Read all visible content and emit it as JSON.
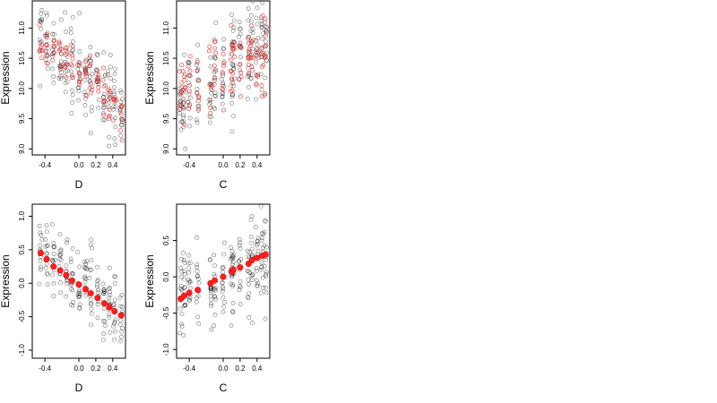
{
  "chart_data": [
    {
      "id": "top-left",
      "type": "scatter",
      "xlabel": "D",
      "ylabel": "Expression",
      "xlim": [
        -0.55,
        0.55
      ],
      "ylim": [
        8.9,
        11.45
      ],
      "xticks": [
        -0.4,
        0.0,
        0.2,
        0.4
      ],
      "xtick_labels": [
        "-0.4",
        "0.0",
        "0.2",
        "0.4"
      ],
      "yticks": [
        9.0,
        9.5,
        10.0,
        10.5,
        11.0
      ],
      "ytick_labels": [
        "9.0",
        "9.5",
        "10.0",
        "10.5",
        "11.0"
      ],
      "x_groups": [
        -0.45,
        -0.38,
        -0.3,
        -0.22,
        -0.15,
        -0.08,
        0.0,
        0.08,
        0.14,
        0.22,
        0.3,
        0.36,
        0.42,
        0.5
      ],
      "series": [
        {
          "style": "black-open",
          "trend": {
            "intercept": 10.3,
            "slope": -1.3
          },
          "spread": 0.32,
          "per_group": 14
        },
        {
          "style": "red-open",
          "trend": {
            "intercept": 10.3,
            "slope": -1.2
          },
          "spread": 0.22,
          "per_group": 7
        }
      ]
    },
    {
      "id": "top-right",
      "type": "scatter",
      "xlabel": "C",
      "ylabel": "Expression",
      "xlim": [
        -0.55,
        0.55
      ],
      "ylim": [
        8.9,
        11.45
      ],
      "xticks": [
        -0.4,
        0.0,
        0.2,
        0.4
      ],
      "xtick_labels": [
        "-0.4",
        "0.0",
        "0.2",
        "0.4"
      ],
      "yticks": [
        9.0,
        9.5,
        10.0,
        10.5,
        11.0
      ],
      "ytick_labels": [
        "9.0",
        "9.5",
        "10.0",
        "10.5",
        "11.0"
      ],
      "x_groups": [
        -0.5,
        -0.46,
        -0.4,
        -0.3,
        -0.15,
        -0.1,
        0.0,
        0.1,
        0.12,
        0.2,
        0.3,
        0.34,
        0.4,
        0.46,
        0.5
      ],
      "series": [
        {
          "style": "black-open",
          "trend": {
            "intercept": 10.3,
            "slope": 0.9
          },
          "spread": 0.38,
          "per_group": 14
        },
        {
          "style": "red-open",
          "trend": {
            "intercept": 10.3,
            "slope": 0.9
          },
          "spread": 0.3,
          "per_group": 8
        }
      ]
    },
    {
      "id": "bottom-left",
      "type": "scatter",
      "xlabel": "D",
      "ylabel": "Expression",
      "xlim": [
        -0.55,
        0.55
      ],
      "ylim": [
        -1.12,
        1.18
      ],
      "xticks": [
        -0.4,
        0.0,
        0.2,
        0.4
      ],
      "xtick_labels": [
        "-0.4",
        "0.0",
        "0.2",
        "0.4"
      ],
      "yticks": [
        -1.0,
        -0.5,
        0.0,
        0.5,
        1.0
      ],
      "ytick_labels": [
        "-1.0",
        "-0.5",
        "0.0",
        "0.5",
        "1.0"
      ],
      "x_groups": [
        -0.45,
        -0.38,
        -0.3,
        -0.22,
        -0.15,
        -0.08,
        0.0,
        0.08,
        0.14,
        0.22,
        0.3,
        0.36,
        0.42,
        0.5
      ],
      "series": [
        {
          "style": "black-open",
          "trend": {
            "intercept": 0.05,
            "slope": -1.0
          },
          "spread": 0.25,
          "per_group": 14
        },
        {
          "style": "red-solid",
          "points": [
            [
              -0.45,
              0.45
            ],
            [
              -0.38,
              0.36
            ],
            [
              -0.3,
              0.25
            ],
            [
              -0.22,
              0.19
            ],
            [
              -0.15,
              0.12
            ],
            [
              -0.08,
              0.04
            ],
            [
              0.0,
              -0.02
            ],
            [
              0.08,
              -0.09
            ],
            [
              0.14,
              -0.15
            ],
            [
              0.22,
              -0.22
            ],
            [
              0.3,
              -0.3
            ],
            [
              0.36,
              -0.36
            ],
            [
              0.42,
              -0.42
            ],
            [
              0.5,
              -0.48
            ]
          ]
        }
      ]
    },
    {
      "id": "bottom-right",
      "type": "scatter",
      "xlabel": "C",
      "ylabel": "Expression",
      "xlim": [
        -0.55,
        0.55
      ],
      "ylim": [
        -1.12,
        1.0
      ],
      "xticks": [
        -0.4,
        0.0,
        0.2,
        0.4
      ],
      "xtick_labels": [
        "-0.4",
        "0.0",
        "0.2",
        "0.4"
      ],
      "yticks": [
        -1.0,
        -0.5,
        0.0,
        0.5
      ],
      "ytick_labels": [
        "-1.0",
        "-0.5",
        "0.0",
        "0.5"
      ],
      "x_groups": [
        -0.5,
        -0.46,
        -0.4,
        -0.3,
        -0.15,
        -0.1,
        0.0,
        0.1,
        0.12,
        0.2,
        0.3,
        0.34,
        0.4,
        0.46,
        0.5
      ],
      "series": [
        {
          "style": "black-open",
          "trend": {
            "intercept": 0.0,
            "slope": 0.6
          },
          "spread": 0.3,
          "per_group": 14
        },
        {
          "style": "red-solid",
          "points": [
            [
              -0.5,
              -0.3
            ],
            [
              -0.46,
              -0.26
            ],
            [
              -0.4,
              -0.22
            ],
            [
              -0.3,
              -0.18
            ],
            [
              -0.15,
              -0.09
            ],
            [
              -0.1,
              -0.05
            ],
            [
              0.0,
              0.0
            ],
            [
              0.1,
              0.07
            ],
            [
              0.12,
              0.1
            ],
            [
              0.2,
              0.13
            ],
            [
              0.3,
              0.18
            ],
            [
              0.34,
              0.23
            ],
            [
              0.4,
              0.26
            ],
            [
              0.46,
              0.29
            ],
            [
              0.5,
              0.31
            ]
          ]
        }
      ]
    }
  ]
}
